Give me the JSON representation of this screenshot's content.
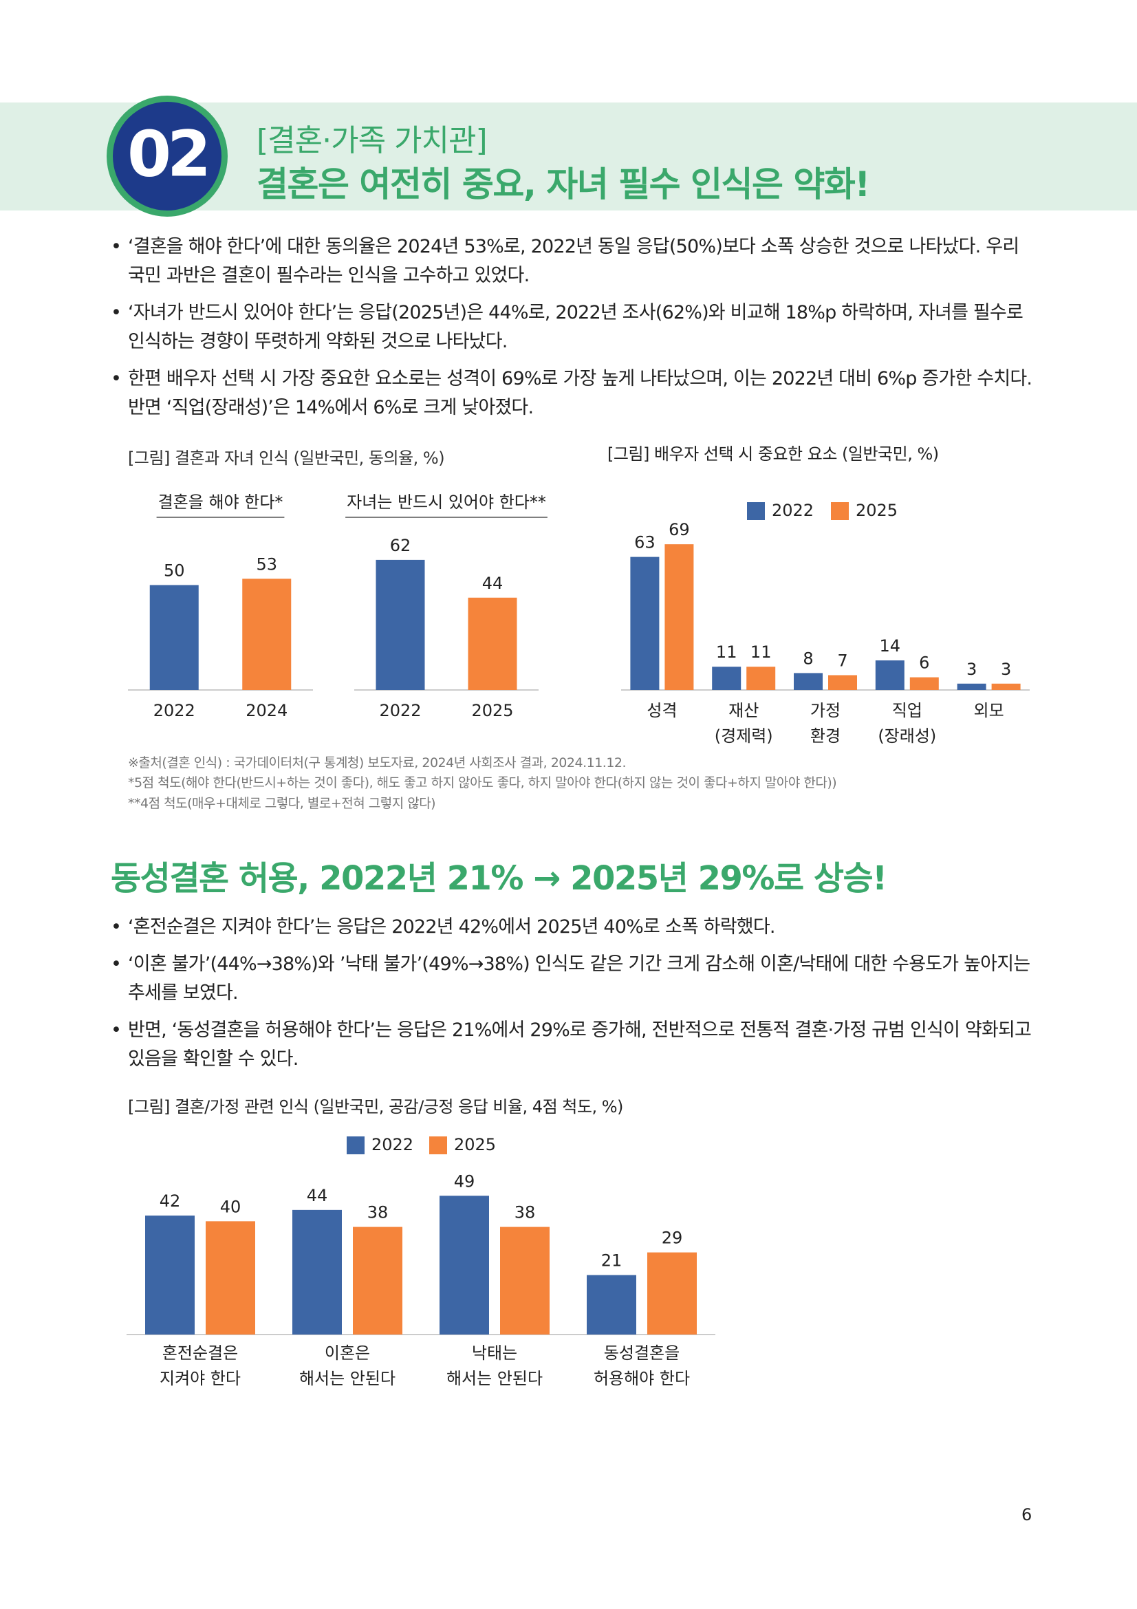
{
  "header": {
    "badge": "02",
    "category": "[결혼·가족 가치관]",
    "title": "결혼은 여전히 중요, 자녀 필수 인식은 약화!"
  },
  "section1": {
    "bullets": [
      "‘결혼을 해야 한다’에 대한 동의율은 2024년 53%로, 2022년 동일 응답(50%)보다 소폭 상승한 것으로 나타났다. 우리국민 과반은 결혼이 필수라는 인식을 고수하고 있었다.",
      "‘자녀가 반드시 있어야 한다’는 응답(2025년)은 44%로, 2022년 조사(62%)와 비교해 18%p 하락하며, 자녀를 필수로 인식하는 경향이 뚜렷하게 약화된 것으로 나타났다.",
      "한편 배우자 선택 시 가장 중요한 요소로는 성격이 69%로 가장 높게 나타났으며, 이는 2022년 대비 6%p 증가한 수치다. 반면 ‘직업(장래성)’은 14%에서 6%로 크게 낮아졌다."
    ]
  },
  "figure1": {
    "caption": "[그림] 결혼과 자녀 인식 (일반국민, 동의율, %)",
    "notes": [
      "※출처(결혼 인식) : 국가데이터처(구 통계청) 보도자료, 2024년 사회조사 결과, 2024.11.12.",
      "*5점 척도(해야 한다(반드시+하는 것이 좋다), 해도 좋고 하지 않아도 좋다, 하지 말아야 한다(하지 않는 것이 좋다+하지 말아야 한다))",
      "**4점 척도(매우+대체로 그렇다, 별로+전혀 그렇지 않다)"
    ]
  },
  "section2": {
    "title": "동성결혼 허용, 2022년 21% → 2025년 29%로 상승!",
    "bullets": [
      "‘혼전순결은 지켜야 한다’는 응답은 2022년 42%에서 2025년 40%로 소폭 하락했다.",
      "‘이혼 불가’(44%→38%)와 ’낙태 불가’(49%→38%) 인식도 같은 기간 크게 감소해 이혼/낙태에 대한 수용도가 높아지는 추세를 보였다.",
      "반면, ‘동성결혼을 허용해야 한다’는 응답은 21%에서 29%로 증가해, 전반적으로 전통적 결혼·가정 규범 인식이 약화되고 있음을 확인할 수 있다."
    ]
  },
  "page_number": "6",
  "chart_data": [
    {
      "type": "bar",
      "title": "결혼을 해야 한다*",
      "categories": [
        "2022",
        "2024"
      ],
      "values": [
        50,
        53
      ],
      "colors": [
        "#3d66a5",
        "#f5843b"
      ],
      "ylim": [
        0,
        100
      ]
    },
    {
      "type": "bar",
      "title": "자녀는 반드시 있어야 한다**",
      "categories": [
        "2022",
        "2025"
      ],
      "values": [
        62,
        44
      ],
      "colors": [
        "#3d66a5",
        "#f5843b"
      ],
      "ylim": [
        0,
        100
      ]
    },
    {
      "type": "grouped-bar",
      "title": "[그림] 배우자 선택 시 중요한 요소 (일반국민, %)",
      "categories": [
        "성격",
        "재산\n(경제력)",
        "가정\n환경",
        "직업\n(장래성)",
        "외모"
      ],
      "series": [
        {
          "name": "2022",
          "color": "#3d66a5",
          "values": [
            63,
            11,
            8,
            14,
            3
          ]
        },
        {
          "name": "2025",
          "color": "#f5843b",
          "values": [
            69,
            11,
            7,
            6,
            3
          ]
        }
      ],
      "ylim": [
        0,
        100
      ]
    },
    {
      "type": "grouped-bar",
      "title": "[그림] 결혼/가정 관련 인식 (일반국민, 공감/긍정 응답 비율, 4점 척도, %)",
      "categories": [
        "혼전순결은\n지켜야 한다",
        "이혼은\n해서는 안된다",
        "낙태는\n해서는 안된다",
        "동성결혼을\n허용해야 한다"
      ],
      "series": [
        {
          "name": "2022",
          "color": "#3d66a5",
          "values": [
            42,
            44,
            49,
            21
          ]
        },
        {
          "name": "2025",
          "color": "#f5843b",
          "values": [
            40,
            38,
            38,
            29
          ]
        }
      ],
      "ylim": [
        0,
        60
      ]
    }
  ]
}
